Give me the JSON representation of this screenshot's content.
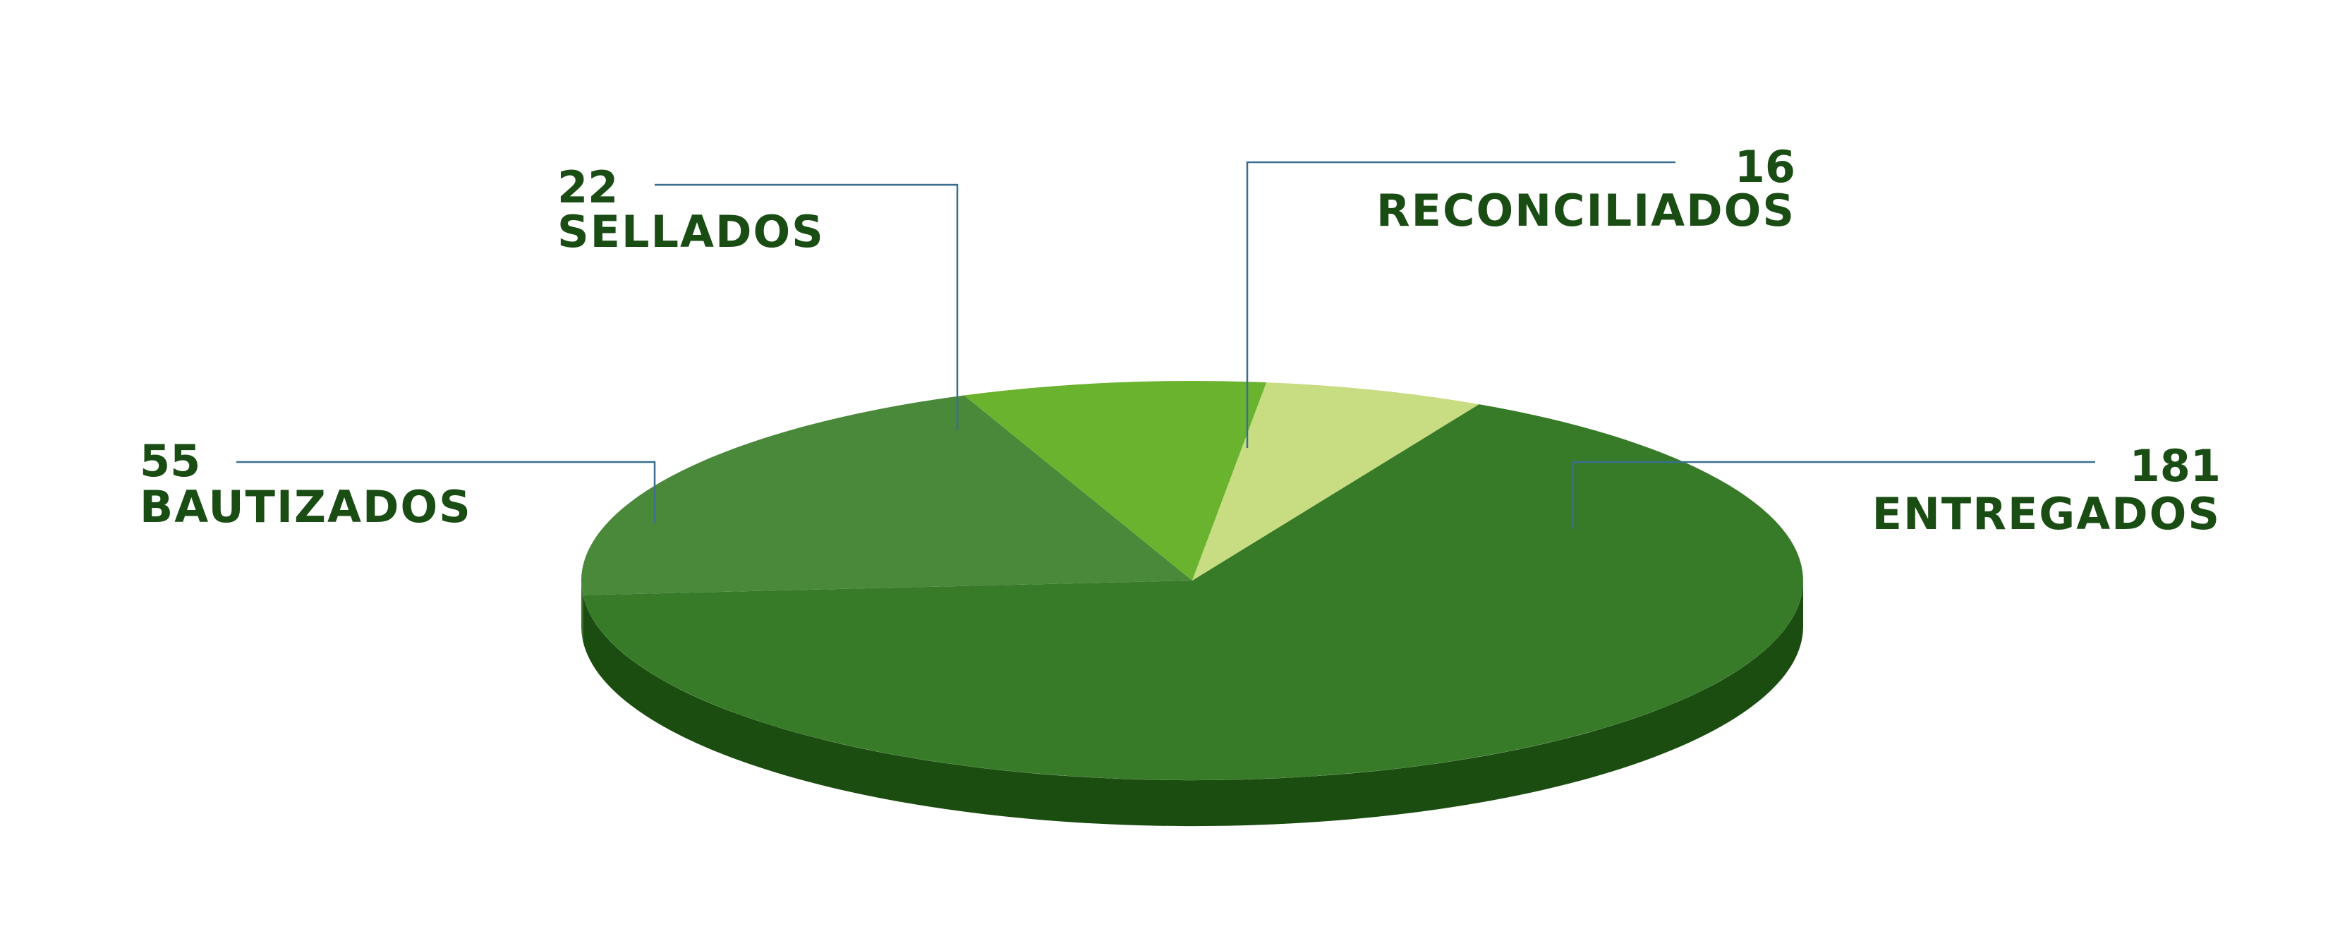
{
  "chart_data": {
    "type": "pie",
    "title": "",
    "slices": [
      {
        "label": "ENTREGADOS",
        "value": 181,
        "color": "#377b29",
        "side_color": "#1b4d10"
      },
      {
        "label": "BAUTIZADOS",
        "value": 55,
        "color": "#4a883a",
        "side_color": "#3b6d2d"
      },
      {
        "label": "SELLADOS",
        "value": 22,
        "color": "#6ab32f",
        "side_color": "#4e8a22"
      },
      {
        "label": "RECONCILIADOS",
        "value": 16,
        "color": "#c8dc82",
        "side_color": "#a6b868"
      }
    ],
    "labels": [
      {
        "value_text": "181",
        "name_text": "ENTREGADOS"
      },
      {
        "value_text": "55",
        "name_text": "BAUTIZADOS"
      },
      {
        "value_text": "22",
        "name_text": "SELLADOS"
      },
      {
        "value_text": "16",
        "name_text": "RECONCILIADOS"
      }
    ]
  }
}
